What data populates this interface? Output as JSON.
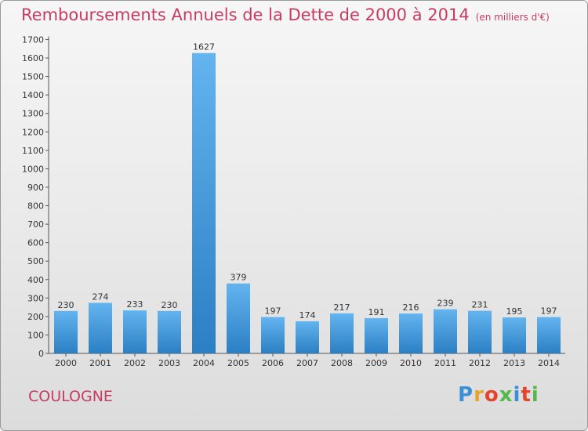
{
  "title": "Remboursements Annuels de la Dette de 2000 à 2014",
  "unit": "(en milliers d'€)",
  "commune": "COULOGNE",
  "logo_text": "Proxiti",
  "colors": {
    "title": "#c73c63",
    "bar_light": "#63b4ef",
    "bar_dark": "#2b7fc3"
  },
  "chart_data": {
    "type": "bar",
    "title": "Remboursements Annuels de la Dette de 2000 à 2014",
    "xlabel": "",
    "ylabel": "",
    "categories": [
      "2000",
      "2001",
      "2002",
      "2003",
      "2004",
      "2005",
      "2006",
      "2007",
      "2008",
      "2009",
      "2010",
      "2011",
      "2012",
      "2013",
      "2014"
    ],
    "values": [
      230,
      274,
      233,
      230,
      1627,
      379,
      197,
      174,
      217,
      191,
      216,
      239,
      231,
      195,
      197
    ],
    "ylim": [
      0,
      1700
    ],
    "yticks": [
      0,
      100,
      200,
      300,
      400,
      500,
      600,
      700,
      800,
      900,
      1000,
      1100,
      1200,
      1300,
      1400,
      1500,
      1600,
      1700
    ],
    "grid": false,
    "legend": "none"
  }
}
